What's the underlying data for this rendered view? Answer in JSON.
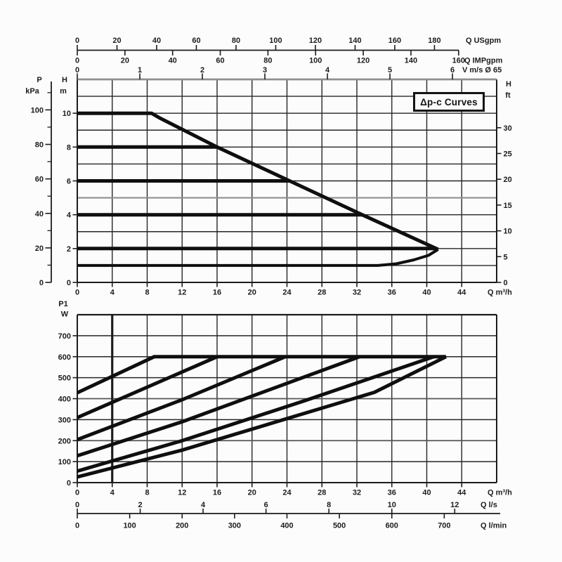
{
  "colors": {
    "ink": "#1c1c1c",
    "grid": "#262626",
    "scan_grey": "#8f8f8f",
    "soft_grey": "#555555",
    "curve": "#0f0f0f",
    "background": "#fcfcfc"
  },
  "annotation": {
    "text": "Δp-c Curves"
  },
  "chart_data": [
    {
      "type": "line",
      "name": "head-flow-chart",
      "title": "Δp-c Curves",
      "x_primary": {
        "label": "Q m³/h",
        "ticks": [
          0,
          4,
          8,
          12,
          16,
          20,
          24,
          28,
          32,
          36,
          40,
          44
        ],
        "range": [
          0,
          48
        ],
        "grid_every": 4
      },
      "x_secondary": [
        {
          "name": "usgpm",
          "label": "Q USgpm",
          "ticks": [
            0,
            20,
            40,
            60,
            80,
            100,
            120,
            140,
            160,
            180
          ],
          "m3h_per_unit": 0.22712
        },
        {
          "name": "impgpm",
          "label": "Q IMPgpm",
          "ticks": [
            0,
            20,
            40,
            60,
            80,
            100,
            120,
            140,
            160
          ],
          "m3h_per_unit": 0.27277
        },
        {
          "name": "velocity",
          "label": "V m/s Ø 65",
          "ticks": [
            0,
            1,
            2,
            3,
            4,
            5,
            6
          ],
          "m3h_per_unit": 7.157
        }
      ],
      "y_primary": {
        "label_lines": [
          "H",
          "m"
        ],
        "ticks": [
          0,
          2,
          4,
          6,
          8,
          10
        ],
        "range": [
          0,
          12
        ],
        "grid_every": 1,
        "grey_gridlines_at": [
          5
        ]
      },
      "y_secondary": [
        {
          "name": "kpa",
          "label_lines": [
            "P",
            "kPa"
          ],
          "ticks": [
            0,
            20,
            40,
            60,
            80,
            100
          ],
          "minor_ticks": [
            10,
            30,
            50,
            70,
            90,
            110
          ],
          "m_per_unit": 0.10197
        },
        {
          "name": "feet",
          "label_lines": [
            "H",
            "ft"
          ],
          "ticks": [
            0,
            5,
            10,
            15,
            20,
            25,
            30
          ],
          "m_per_unit": 0.3048
        }
      ],
      "series": [
        {
          "name": "max-speed-envelope",
          "points": [
            [
              0,
              10
            ],
            [
              8.5,
              10
            ],
            [
              9.5,
              9.7
            ],
            [
              16,
              8
            ],
            [
              24.3,
              6
            ],
            [
              32.6,
              4
            ],
            [
              41.3,
              1.95
            ]
          ]
        },
        {
          "name": "min-speed-envelope",
          "points": [
            [
              0,
              1
            ],
            [
              34.4,
              1
            ],
            [
              36.5,
              1.1
            ],
            [
              38.5,
              1.33
            ],
            [
              40.2,
              1.6
            ],
            [
              41.3,
              1.95
            ]
          ]
        },
        {
          "name": "setpoint-8m",
          "points": [
            [
              0,
              8
            ],
            [
              16,
              8
            ]
          ]
        },
        {
          "name": "setpoint-6m",
          "points": [
            [
              0,
              6
            ],
            [
              24.3,
              6
            ]
          ]
        },
        {
          "name": "setpoint-4m",
          "points": [
            [
              0,
              4
            ],
            [
              32.6,
              4
            ]
          ]
        },
        {
          "name": "setpoint-2m",
          "points": [
            [
              0,
              2
            ],
            [
              40.9,
              2
            ],
            [
              41.3,
              1.95
            ]
          ]
        }
      ]
    },
    {
      "type": "line",
      "name": "power-flow-chart",
      "x_primary": {
        "label": "Q m³/h",
        "ticks": [
          0,
          4,
          8,
          12,
          16,
          20,
          24,
          28,
          32,
          36,
          40,
          44
        ],
        "range": [
          0,
          48
        ],
        "grid_every": 4
      },
      "x_secondary": [
        {
          "name": "litres-per-second",
          "label": "Q l/s",
          "ticks": [
            0,
            2,
            4,
            6,
            8,
            10,
            12
          ],
          "m3h_per_unit": 3.6
        },
        {
          "name": "litres-per-minute",
          "label": "Q l/min",
          "ticks": [
            0,
            100,
            200,
            300,
            400,
            500,
            600,
            700
          ],
          "m3h_per_unit": 0.06
        }
      ],
      "y_primary": {
        "label_lines": [
          "P1",
          "W"
        ],
        "ticks": [
          0,
          100,
          200,
          300,
          400,
          500,
          600,
          700
        ],
        "range": [
          0,
          800
        ],
        "grid_every": 100,
        "grey_gridlines_at": [
          200,
          400
        ]
      },
      "marker_line_q": 4,
      "series": [
        {
          "name": "power-10m",
          "points": [
            [
              0,
              428
            ],
            [
              8.8,
              600
            ],
            [
              42.2,
              600
            ]
          ]
        },
        {
          "name": "power-8m",
          "points": [
            [
              0,
              310
            ],
            [
              16,
              600
            ]
          ]
        },
        {
          "name": "power-6m",
          "points": [
            [
              0,
              205
            ],
            [
              12,
              395
            ],
            [
              23.8,
              600
            ]
          ]
        },
        {
          "name": "power-4m",
          "points": [
            [
              0,
              128
            ],
            [
              12,
              290
            ],
            [
              32.3,
              600
            ]
          ]
        },
        {
          "name": "power-2m",
          "points": [
            [
              0,
              55
            ],
            [
              12,
              200
            ],
            [
              26,
              390
            ],
            [
              40.8,
              600
            ]
          ]
        },
        {
          "name": "power-1m",
          "points": [
            [
              0,
              27
            ],
            [
              12,
              155
            ],
            [
              34,
              430
            ],
            [
              42.2,
              600
            ]
          ]
        }
      ]
    }
  ]
}
